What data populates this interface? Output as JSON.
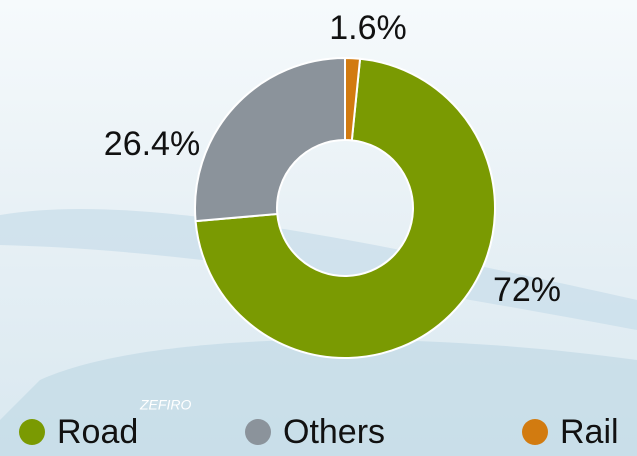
{
  "chart_data": {
    "type": "donut",
    "categories": [
      "Road",
      "Others",
      "Rail"
    ],
    "values": [
      72,
      26.4,
      1.6
    ],
    "value_labels": [
      "72%",
      "26.4%",
      "1.6%"
    ],
    "colors": [
      "#7a9a02",
      "#8b939b",
      "#d27b10"
    ],
    "legend": "bottom"
  }
}
